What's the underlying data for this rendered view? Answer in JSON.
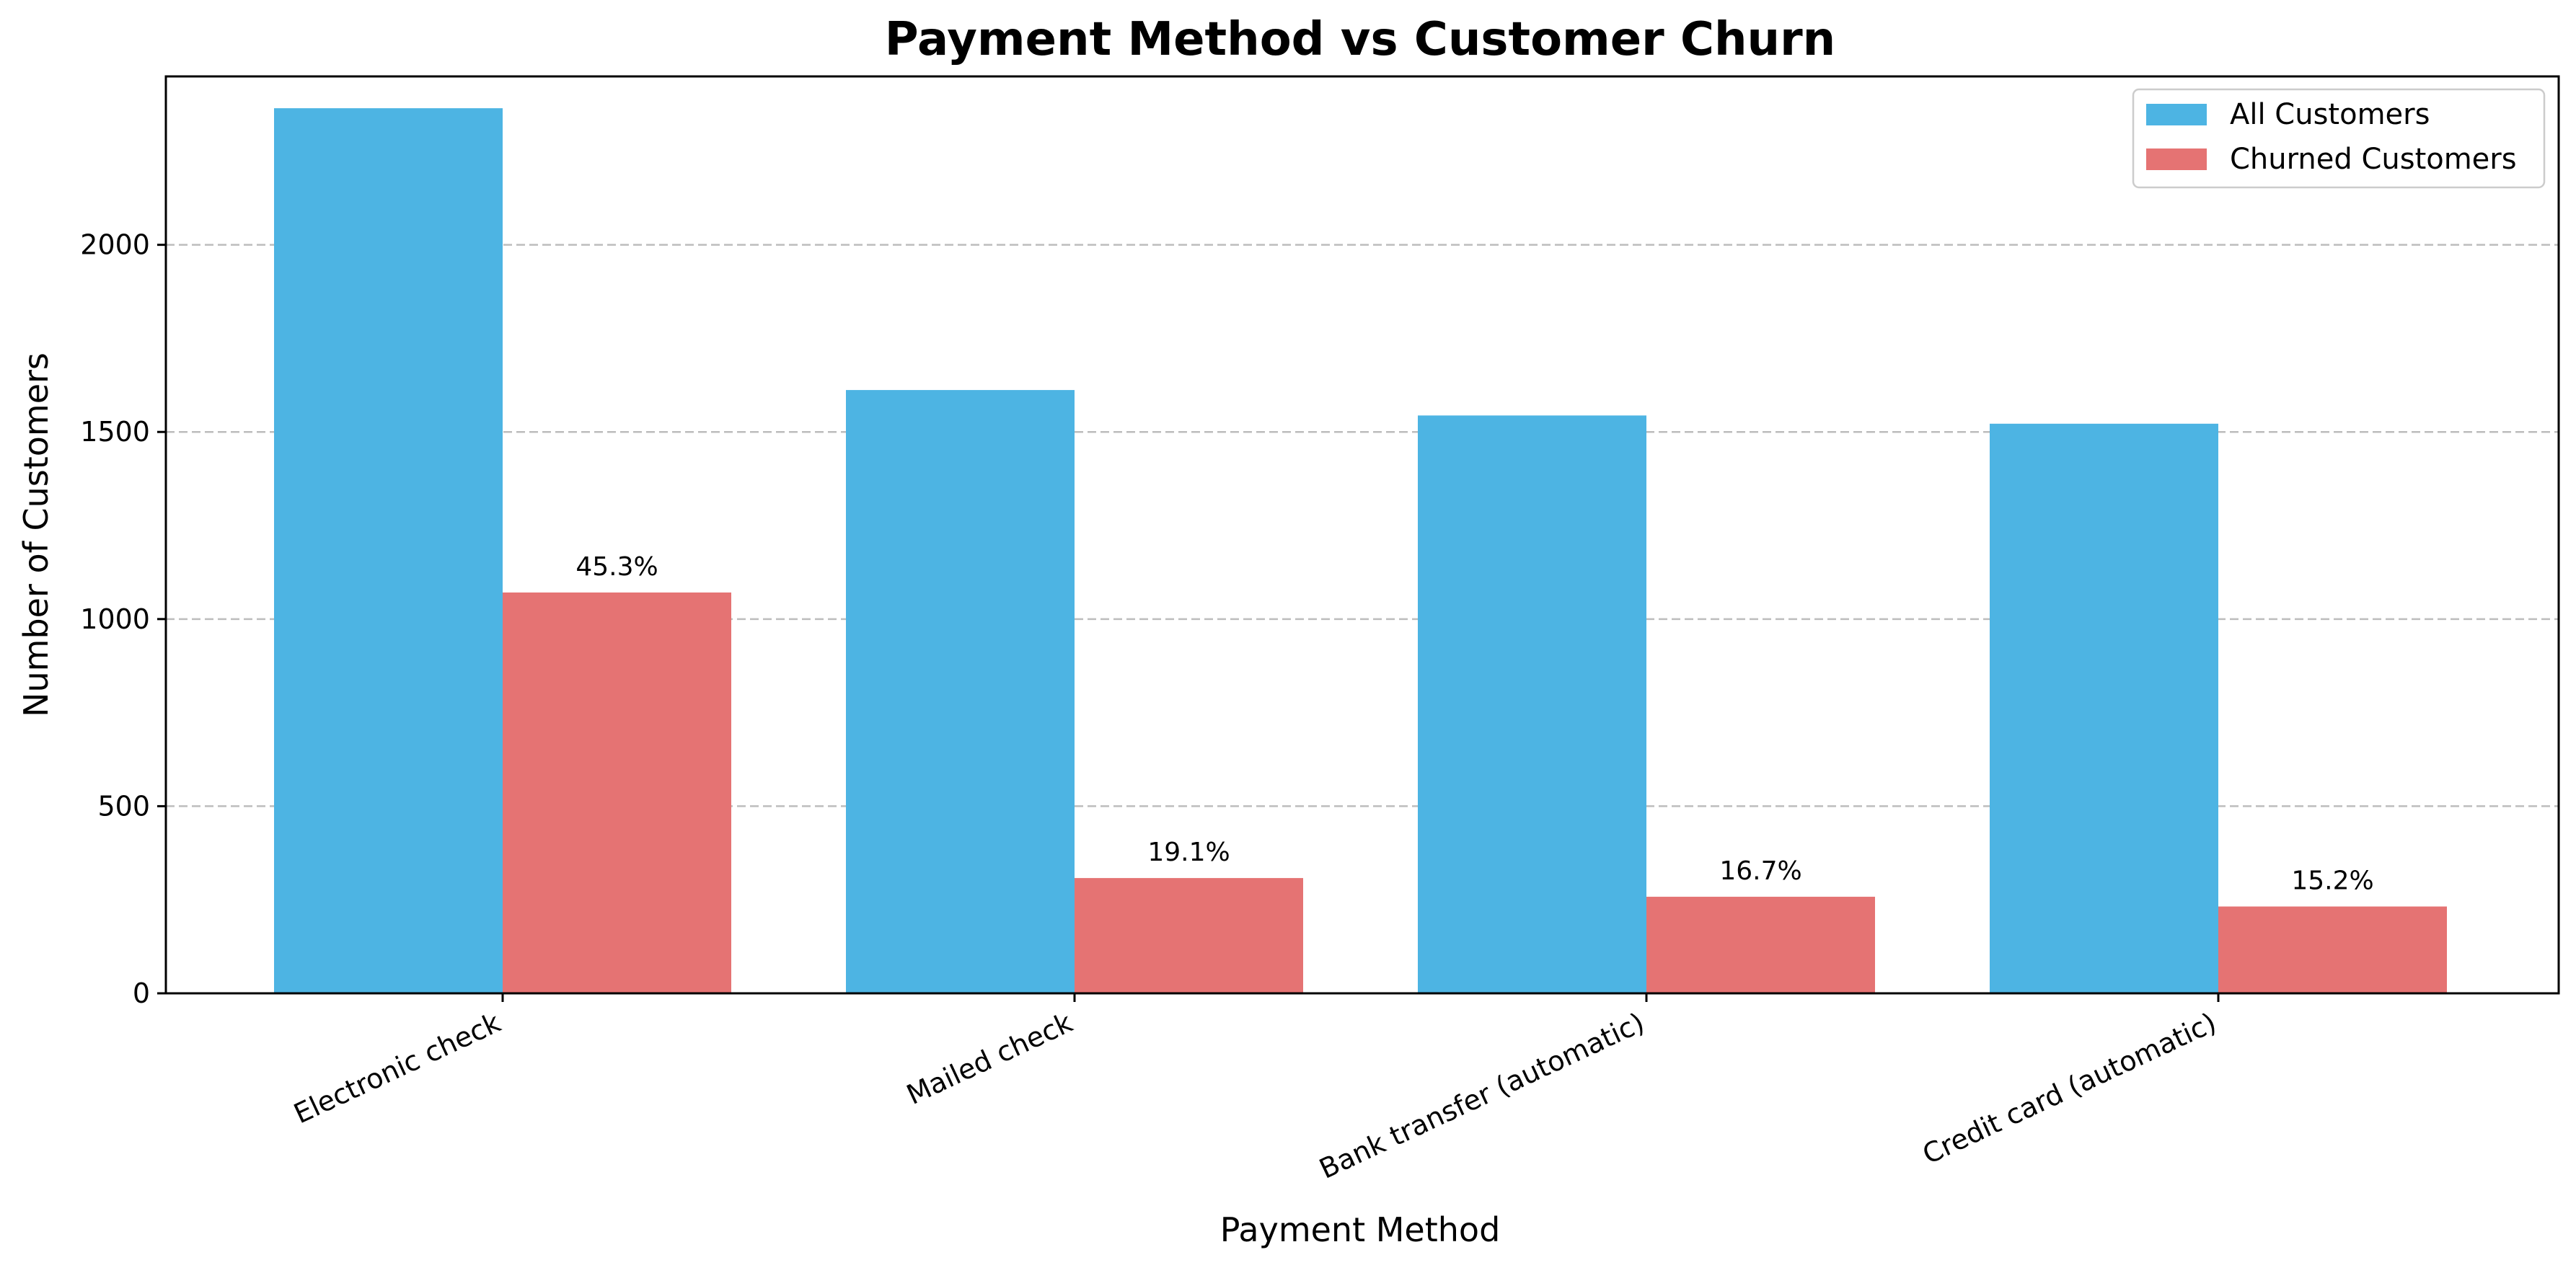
{
  "chart_data": {
    "type": "bar",
    "title": "Payment Method vs Customer Churn",
    "xlabel": "Payment Method",
    "ylabel": "Number of Customers",
    "categories": [
      "Electronic check",
      "Mailed check",
      "Bank transfer (automatic)",
      "Credit card (automatic)"
    ],
    "series": [
      {
        "name": "All Customers",
        "color": "#4db4e3",
        "values": [
          2365,
          1612,
          1544,
          1522
        ]
      },
      {
        "name": "Churned Customers",
        "color": "#e57373",
        "values": [
          1071,
          308,
          258,
          232
        ]
      }
    ],
    "data_labels": [
      "45.3%",
      "19.1%",
      "16.7%",
      "15.2%"
    ],
    "ylim": [
      0,
      2450
    ],
    "yticks": [
      0,
      500,
      1000,
      1500,
      2000
    ],
    "grid": "y-dashed",
    "legend_position": "top-right"
  }
}
